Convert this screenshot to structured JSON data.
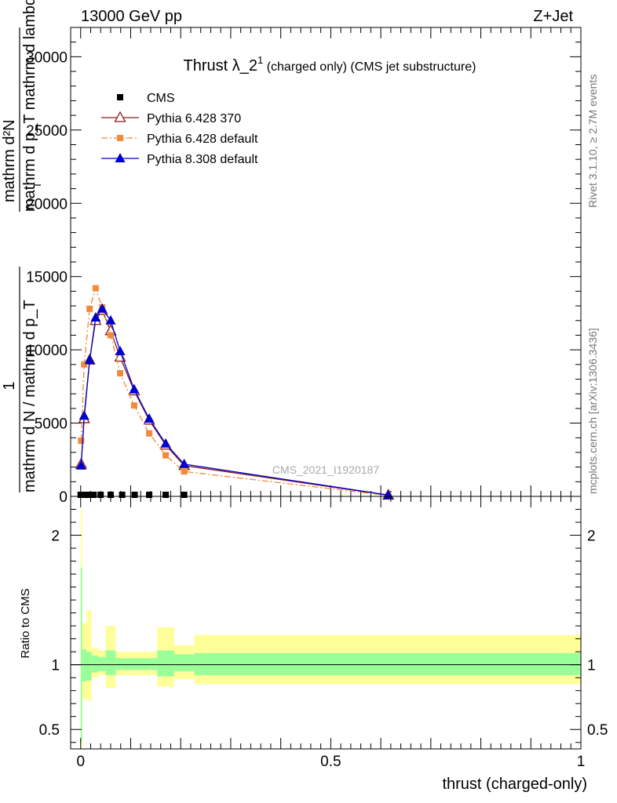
{
  "header": {
    "left": "13000 GeV pp",
    "right": "Z+Jet"
  },
  "side_labels": {
    "rivet": "Rivet 3.1.10, ≥ 2.7M events",
    "mcplots": "mcplots.cern.ch [arXiv:1306.3436]"
  },
  "chart_data": [
    {
      "type": "line",
      "panel": "main",
      "title": "Thrust λ_2",
      "title_sup": "1",
      "title_suffix": " (charged only) (CMS jet substructure)",
      "ylabel_lines": [
        "mathrm d²N",
        "mathrm d p_T mathrm d lambda",
        "1",
        "mathrm d N / mathrm d p_T"
      ],
      "ylabel_sub": "T",
      "xlim": [
        -0.02,
        1.0
      ],
      "ylim": [
        0,
        32000
      ],
      "yticks": [
        0,
        5000,
        10000,
        15000,
        20000,
        25000,
        30000
      ],
      "ytick_labels": [
        "0",
        "5000",
        "10000",
        "15000",
        "20000",
        "25000",
        "30000"
      ],
      "watermark": "CMS_2021_I1920187",
      "legend_position": "top-left",
      "series": [
        {
          "name": "CMS",
          "style": "marker-only",
          "color": "#000000",
          "marker": "square",
          "x": [
            0.0,
            0.007,
            0.015,
            0.026,
            0.04,
            0.06,
            0.083,
            0.108,
            0.137,
            0.17,
            0.207
          ],
          "y": [
            0,
            0,
            0,
            0,
            0,
            0,
            0,
            0,
            0,
            0,
            0
          ]
        },
        {
          "name": "Pythia 6.428 370",
          "style": "solid",
          "color": "#8b1a1a",
          "marker": "triangle-open",
          "x": [
            0.001,
            0.007,
            0.018,
            0.03,
            0.043,
            0.06,
            0.079,
            0.107,
            0.137,
            0.17,
            0.207,
            0.615
          ],
          "y": [
            2200,
            5300,
            9300,
            12000,
            12700,
            11300,
            9500,
            7200,
            5200,
            3500,
            2100,
            80
          ]
        },
        {
          "name": "Pythia 6.428 default",
          "style": "dash-dot",
          "color": "#f28a3a",
          "marker": "square",
          "x": [
            0.001,
            0.007,
            0.018,
            0.03,
            0.043,
            0.06,
            0.079,
            0.107,
            0.137,
            0.17,
            0.207,
            0.615
          ],
          "y": [
            3800,
            9000,
            12800,
            14200,
            12900,
            11000,
            8400,
            6200,
            4300,
            2800,
            1700,
            60
          ]
        },
        {
          "name": "Pythia 8.308 default",
          "style": "solid",
          "color": "#0000cc",
          "marker": "triangle-filled",
          "x": [
            0.001,
            0.007,
            0.018,
            0.03,
            0.043,
            0.06,
            0.079,
            0.107,
            0.137,
            0.17,
            0.207,
            0.615
          ],
          "y": [
            2100,
            5500,
            9300,
            12200,
            12800,
            12000,
            9900,
            7300,
            5300,
            3600,
            2200,
            90
          ]
        }
      ]
    },
    {
      "type": "area",
      "panel": "ratio",
      "ylabel": "Ratio to CMS",
      "xlabel": "thrust (charged-only)",
      "xlim": [
        -0.02,
        1.0
      ],
      "ylim": [
        0.35,
        2.3
      ],
      "yticks": [
        0.5,
        1,
        2
      ],
      "ytick_labels": [
        "0.5",
        "1",
        "2"
      ],
      "xticks": [
        0,
        0.5,
        1
      ],
      "xtick_labels": [
        "0",
        "0.5",
        "1"
      ],
      "reference_line": 1,
      "band_colors": {
        "stat": "#99ff99",
        "total": "#ffff99"
      },
      "bins": [
        {
          "lo": 0.0,
          "hi": 0.003,
          "total": [
            0.3,
            2.2
          ],
          "stat": [
            0.4,
            1.75
          ]
        },
        {
          "lo": 0.003,
          "hi": 0.012,
          "total": [
            0.74,
            1.32
          ],
          "stat": [
            0.87,
            1.12
          ]
        },
        {
          "lo": 0.012,
          "hi": 0.022,
          "total": [
            0.72,
            1.42
          ],
          "stat": [
            0.88,
            1.1
          ]
        },
        {
          "lo": 0.022,
          "hi": 0.035,
          "total": [
            0.9,
            1.13
          ],
          "stat": [
            0.94,
            1.07
          ]
        },
        {
          "lo": 0.035,
          "hi": 0.05,
          "total": [
            0.92,
            1.11
          ],
          "stat": [
            0.95,
            1.06
          ]
        },
        {
          "lo": 0.05,
          "hi": 0.07,
          "total": [
            0.82,
            1.3
          ],
          "stat": [
            0.92,
            1.11
          ]
        },
        {
          "lo": 0.07,
          "hi": 0.095,
          "total": [
            0.92,
            1.1
          ],
          "stat": [
            0.96,
            1.05
          ]
        },
        {
          "lo": 0.095,
          "hi": 0.12,
          "total": [
            0.92,
            1.1
          ],
          "stat": [
            0.96,
            1.05
          ]
        },
        {
          "lo": 0.12,
          "hi": 0.153,
          "total": [
            0.92,
            1.1
          ],
          "stat": [
            0.96,
            1.05
          ]
        },
        {
          "lo": 0.153,
          "hi": 0.187,
          "total": [
            0.83,
            1.29
          ],
          "stat": [
            0.91,
            1.11
          ]
        },
        {
          "lo": 0.187,
          "hi": 0.227,
          "total": [
            0.89,
            1.15
          ],
          "stat": [
            0.95,
            1.08
          ]
        },
        {
          "lo": 0.227,
          "hi": 1.0,
          "total": [
            0.85,
            1.23
          ],
          "stat": [
            0.92,
            1.09
          ]
        }
      ]
    }
  ]
}
